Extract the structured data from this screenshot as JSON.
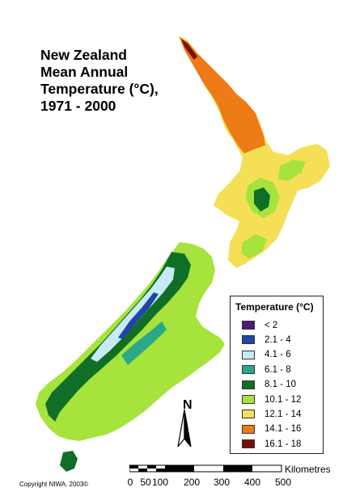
{
  "title": "New Zealand\nMean Annual\nTemperature (°C),\n1971 - 2000",
  "legend": {
    "title": "Temperature (°C)",
    "items": [
      {
        "label": "< 2",
        "color": "#4b1a82"
      },
      {
        "label": "2.1 - 4",
        "color": "#1f46a8"
      },
      {
        "label": "4.1 - 6",
        "color": "#c8eaf6"
      },
      {
        "label": "6.1 - 8",
        "color": "#2aa888"
      },
      {
        "label": "8.1 - 10",
        "color": "#0f6f26"
      },
      {
        "label": "10.1 - 12",
        "color": "#a6e33c"
      },
      {
        "label": "12.1 - 14",
        "color": "#f4df57"
      },
      {
        "label": "14.1 - 16",
        "color": "#ee7b18"
      },
      {
        "label": "16.1 - 18",
        "color": "#7a0e08"
      }
    ]
  },
  "north_label": "N",
  "scale": {
    "units": "Kilometres",
    "ticks": [
      "0",
      "50",
      "100",
      "200",
      "300",
      "400",
      "500"
    ]
  },
  "copyright": "Copyright NIWA, 2003©"
}
